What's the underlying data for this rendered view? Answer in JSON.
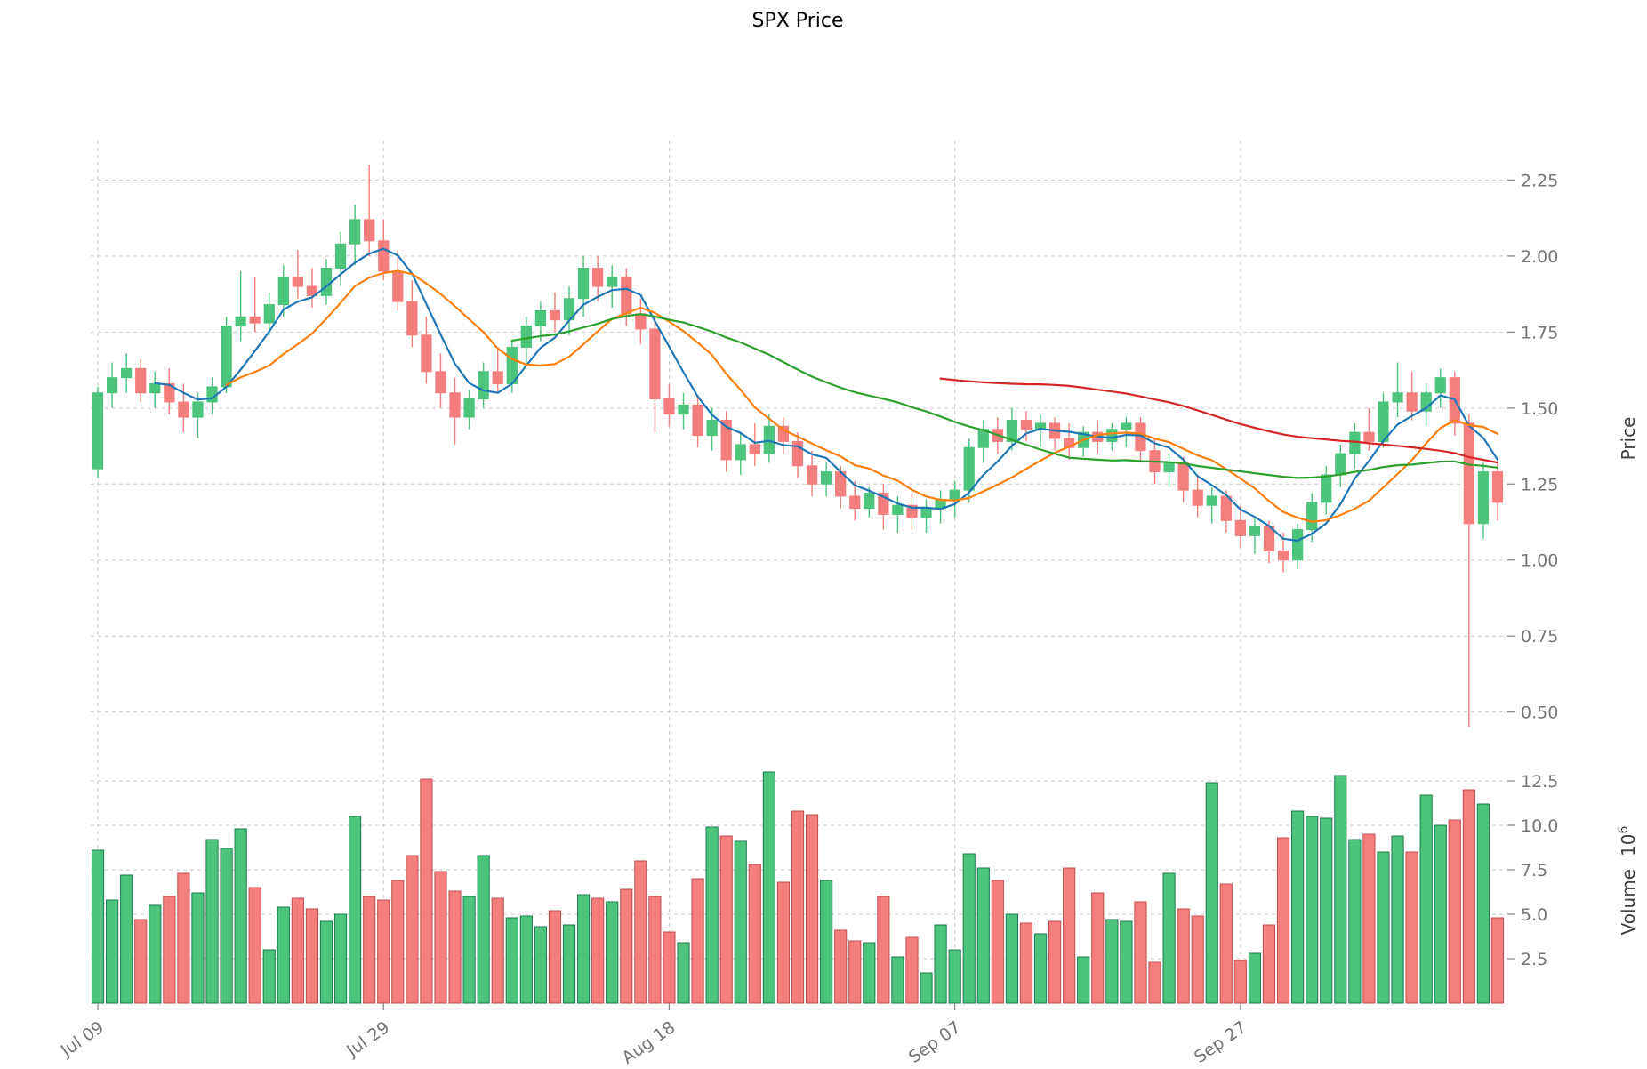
{
  "style": {
    "up_color": "#4cc47c",
    "down_color": "#f47d7d",
    "up_edge": "#1e7a4d",
    "down_edge": "#c0504d",
    "grid_color": "#cccccc",
    "tick_color": "#767676",
    "tick_mark_color": "#8a8a8a",
    "background": "#ffffff"
  },
  "chart_data": {
    "type": "candlestick",
    "title": "SPX Price",
    "ylabel": "Price",
    "volume_label": "Volume",
    "volume_unit_base": "10",
    "volume_unit_exp": "6",
    "legend": "none",
    "grid": "dashed",
    "price_ylim": [
      0.42,
      2.38
    ],
    "volume_ylim": [
      0,
      13.8
    ],
    "price_ticks": [
      {
        "value": 0.5,
        "label": "0.50"
      },
      {
        "value": 0.75,
        "label": "0.75"
      },
      {
        "value": 1.0,
        "label": "1.00"
      },
      {
        "value": 1.25,
        "label": "1.25"
      },
      {
        "value": 1.5,
        "label": "1.50"
      },
      {
        "value": 1.75,
        "label": "1.75"
      },
      {
        "value": 2.0,
        "label": "2.00"
      },
      {
        "value": 2.25,
        "label": "2.25"
      }
    ],
    "volume_ticks": [
      {
        "value": 2.5,
        "label": "2.5"
      },
      {
        "value": 5.0,
        "label": "5.0"
      },
      {
        "value": 7.5,
        "label": "7.5"
      },
      {
        "value": 10.0,
        "label": "10.0"
      },
      {
        "value": 12.5,
        "label": "12.5"
      }
    ],
    "x_ticks": [
      {
        "pos": 0,
        "label": "Jul 09"
      },
      {
        "pos": 20,
        "label": "Jul 29"
      },
      {
        "pos": 40,
        "label": "Aug 18"
      },
      {
        "pos": 60,
        "label": "Sep 07"
      },
      {
        "pos": 80,
        "label": "Sep 27"
      }
    ],
    "ohlc": {
      "open": [
        1.3,
        1.55,
        1.6,
        1.63,
        1.55,
        1.58,
        1.52,
        1.47,
        1.52,
        1.57,
        1.77,
        1.8,
        1.78,
        1.84,
        1.93,
        1.9,
        1.87,
        1.96,
        2.04,
        2.12,
        2.05,
        1.95,
        1.85,
        1.74,
        1.62,
        1.55,
        1.47,
        1.53,
        1.62,
        1.58,
        1.7,
        1.77,
        1.82,
        1.79,
        1.86,
        1.96,
        1.9,
        1.93,
        1.81,
        1.76,
        1.53,
        1.48,
        1.51,
        1.41,
        1.46,
        1.33,
        1.38,
        1.35,
        1.44,
        1.39,
        1.31,
        1.25,
        1.29,
        1.21,
        1.17,
        1.22,
        1.15,
        1.18,
        1.14,
        1.17,
        1.2,
        1.23,
        1.37,
        1.43,
        1.39,
        1.46,
        1.43,
        1.45,
        1.4,
        1.37,
        1.42,
        1.39,
        1.43,
        1.45,
        1.36,
        1.29,
        1.32,
        1.23,
        1.18,
        1.21,
        1.13,
        1.08,
        1.11,
        1.03,
        1.0,
        1.1,
        1.19,
        1.28,
        1.35,
        1.42,
        1.39,
        1.52,
        1.55,
        1.49,
        1.55,
        1.6,
        1.45,
        1.12,
        1.29
      ],
      "high": [
        1.57,
        1.65,
        1.68,
        1.66,
        1.62,
        1.63,
        1.58,
        1.55,
        1.6,
        1.8,
        1.95,
        1.93,
        1.88,
        1.97,
        2.02,
        1.96,
        1.99,
        2.08,
        2.17,
        2.3,
        2.12,
        2.02,
        1.92,
        1.8,
        1.68,
        1.6,
        1.56,
        1.65,
        1.7,
        1.72,
        1.8,
        1.85,
        1.88,
        1.9,
        2.0,
        2.0,
        1.97,
        1.96,
        1.86,
        1.8,
        1.58,
        1.55,
        1.54,
        1.5,
        1.49,
        1.42,
        1.45,
        1.48,
        1.47,
        1.42,
        1.36,
        1.32,
        1.31,
        1.26,
        1.24,
        1.25,
        1.21,
        1.22,
        1.2,
        1.23,
        1.26,
        1.4,
        1.46,
        1.47,
        1.5,
        1.49,
        1.48,
        1.47,
        1.45,
        1.44,
        1.46,
        1.45,
        1.47,
        1.47,
        1.4,
        1.35,
        1.34,
        1.28,
        1.24,
        1.23,
        1.18,
        1.14,
        1.13,
        1.09,
        1.12,
        1.22,
        1.31,
        1.38,
        1.45,
        1.5,
        1.55,
        1.65,
        1.62,
        1.58,
        1.63,
        1.62,
        1.48,
        1.32,
        1.33
      ],
      "low": [
        1.27,
        1.5,
        1.55,
        1.52,
        1.5,
        1.48,
        1.42,
        1.4,
        1.48,
        1.55,
        1.72,
        1.75,
        1.74,
        1.8,
        1.86,
        1.83,
        1.84,
        1.9,
        1.97,
        2.0,
        1.92,
        1.82,
        1.7,
        1.58,
        1.5,
        1.38,
        1.43,
        1.5,
        1.55,
        1.55,
        1.64,
        1.72,
        1.75,
        1.74,
        1.8,
        1.85,
        1.83,
        1.77,
        1.71,
        1.42,
        1.44,
        1.43,
        1.37,
        1.36,
        1.29,
        1.28,
        1.31,
        1.32,
        1.35,
        1.27,
        1.21,
        1.21,
        1.17,
        1.13,
        1.14,
        1.1,
        1.09,
        1.1,
        1.09,
        1.12,
        1.14,
        1.19,
        1.32,
        1.35,
        1.36,
        1.39,
        1.37,
        1.36,
        1.33,
        1.34,
        1.35,
        1.36,
        1.37,
        1.32,
        1.25,
        1.24,
        1.19,
        1.14,
        1.12,
        1.09,
        1.04,
        1.02,
        0.99,
        0.96,
        0.97,
        1.06,
        1.15,
        1.24,
        1.3,
        1.36,
        1.37,
        1.47,
        1.46,
        1.44,
        1.5,
        1.41,
        0.45,
        1.07,
        1.13
      ],
      "close": [
        1.55,
        1.6,
        1.63,
        1.55,
        1.58,
        1.52,
        1.47,
        1.52,
        1.57,
        1.77,
        1.8,
        1.78,
        1.84,
        1.93,
        1.9,
        1.87,
        1.96,
        2.04,
        2.12,
        2.05,
        1.95,
        1.85,
        1.74,
        1.62,
        1.55,
        1.47,
        1.53,
        1.62,
        1.58,
        1.7,
        1.77,
        1.82,
        1.79,
        1.86,
        1.96,
        1.9,
        1.93,
        1.81,
        1.76,
        1.53,
        1.48,
        1.51,
        1.41,
        1.46,
        1.33,
        1.38,
        1.35,
        1.44,
        1.39,
        1.31,
        1.25,
        1.29,
        1.21,
        1.17,
        1.22,
        1.15,
        1.18,
        1.14,
        1.17,
        1.2,
        1.23,
        1.37,
        1.43,
        1.39,
        1.46,
        1.43,
        1.45,
        1.4,
        1.37,
        1.42,
        1.39,
        1.43,
        1.45,
        1.36,
        1.29,
        1.32,
        1.23,
        1.18,
        1.21,
        1.13,
        1.08,
        1.11,
        1.03,
        1.0,
        1.1,
        1.19,
        1.28,
        1.35,
        1.42,
        1.39,
        1.52,
        1.55,
        1.49,
        1.55,
        1.6,
        1.45,
        1.12,
        1.29,
        1.19
      ]
    },
    "volume": [
      8.6,
      5.8,
      7.2,
      4.7,
      5.5,
      6.0,
      7.3,
      6.2,
      9.2,
      8.7,
      9.8,
      6.5,
      3.0,
      5.4,
      5.9,
      5.3,
      4.6,
      5.0,
      10.5,
      6.0,
      5.8,
      6.9,
      8.3,
      12.6,
      7.4,
      6.3,
      6.0,
      8.3,
      5.9,
      4.8,
      4.9,
      4.3,
      5.2,
      4.4,
      6.1,
      5.9,
      5.7,
      6.4,
      8.0,
      6.0,
      4.0,
      3.4,
      7.0,
      9.9,
      9.4,
      9.1,
      7.8,
      13.0,
      6.8,
      10.8,
      10.6,
      6.9,
      4.1,
      3.5,
      3.4,
      6.0,
      2.6,
      3.7,
      1.7,
      4.4,
      3.0,
      8.4,
      7.6,
      6.9,
      5.0,
      4.5,
      3.9,
      4.6,
      7.6,
      2.6,
      6.2,
      4.7,
      4.6,
      5.7,
      2.3,
      7.3,
      5.3,
      4.9,
      12.4,
      6.7,
      2.4,
      2.8,
      4.4,
      9.3,
      10.8,
      10.5,
      10.4,
      12.8,
      9.2,
      9.5,
      8.5,
      9.4,
      8.5,
      11.7,
      10.0,
      10.3,
      12.0,
      11.2,
      4.8
    ],
    "overlays": [
      {
        "name": "MA5",
        "window": 5,
        "color": "#1f77b4"
      },
      {
        "name": "MA10",
        "window": 10,
        "color": "#ff7f0e"
      },
      {
        "name": "MA30",
        "window": 30,
        "color": "#2ca02c"
      },
      {
        "name": "MA60",
        "window": 60,
        "color": "#d62728"
      }
    ]
  }
}
